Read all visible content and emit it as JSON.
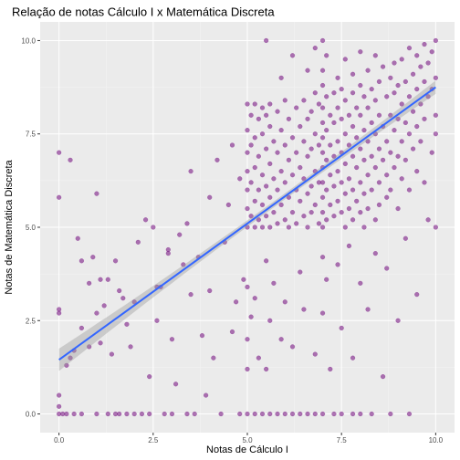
{
  "chart_data": {
    "type": "scatter",
    "title": "Relação de notas Cálculo I x Matemática Discreta",
    "xlabel": "Notas de Cálculo I",
    "ylabel": "Notas de Matemática Discreta",
    "xlim": [
      -0.5,
      10.5
    ],
    "ylim": [
      -0.5,
      10.5
    ],
    "x_ticks": [
      0.0,
      2.5,
      5.0,
      7.5,
      10.0
    ],
    "x_tick_labels": [
      "0.0",
      "2.5",
      "5.0",
      "7.5",
      "10.0"
    ],
    "y_ticks": [
      0.0,
      2.5,
      5.0,
      7.5,
      10.0
    ],
    "y_tick_labels": [
      "0.0",
      "2.5",
      "5.0",
      "7.5",
      "10.0"
    ],
    "grid": true,
    "point_color": "#7b1a86",
    "line_color": "#3366ff",
    "band_color": "#999999",
    "panel_color": "#ebebeb",
    "regression": {
      "intercept": 1.45,
      "slope": 0.73,
      "se_min": 0.08,
      "se_max": 0.3
    },
    "points": [
      [
        0.0,
        7.0
      ],
      [
        0.0,
        5.8
      ],
      [
        0.0,
        2.8
      ],
      [
        0.0,
        2.7
      ],
      [
        0.0,
        0.5
      ],
      [
        0.0,
        0.2
      ],
      [
        0.0,
        0.0
      ],
      [
        0.1,
        0.0
      ],
      [
        0.2,
        0.0
      ],
      [
        0.2,
        1.3
      ],
      [
        0.3,
        1.5
      ],
      [
        0.3,
        6.8
      ],
      [
        0.4,
        1.7
      ],
      [
        0.4,
        0.0
      ],
      [
        0.5,
        4.7
      ],
      [
        0.6,
        4.1
      ],
      [
        0.6,
        2.3
      ],
      [
        0.6,
        0.0
      ],
      [
        0.8,
        1.8
      ],
      [
        0.8,
        3.5
      ],
      [
        0.9,
        4.2
      ],
      [
        1.0,
        5.9
      ],
      [
        1.0,
        2.7
      ],
      [
        1.0,
        0.0
      ],
      [
        1.1,
        3.6
      ],
      [
        1.1,
        1.9
      ],
      [
        1.2,
        2.9
      ],
      [
        1.3,
        0.0
      ],
      [
        1.3,
        3.6
      ],
      [
        1.4,
        1.6
      ],
      [
        1.5,
        0.0
      ],
      [
        1.5,
        4.1
      ],
      [
        1.6,
        3.3
      ],
      [
        1.6,
        0.0
      ],
      [
        1.7,
        3.1
      ],
      [
        1.8,
        0.0
      ],
      [
        1.8,
        2.4
      ],
      [
        1.9,
        1.8
      ],
      [
        2.0,
        0.0
      ],
      [
        2.0,
        3.0
      ],
      [
        2.1,
        4.6
      ],
      [
        2.2,
        0.0
      ],
      [
        2.3,
        5.2
      ],
      [
        2.4,
        1.0
      ],
      [
        2.4,
        0.0
      ],
      [
        2.5,
        5.0
      ],
      [
        2.6,
        3.4
      ],
      [
        2.6,
        2.5
      ],
      [
        2.7,
        3.4
      ],
      [
        2.8,
        0.0
      ],
      [
        2.9,
        4.4
      ],
      [
        2.9,
        4.3
      ],
      [
        3.0,
        2.0
      ],
      [
        3.0,
        0.0
      ],
      [
        3.1,
        0.8
      ],
      [
        3.2,
        4.8
      ],
      [
        3.3,
        4.0
      ],
      [
        3.4,
        5.1
      ],
      [
        3.4,
        0.0
      ],
      [
        3.5,
        6.5
      ],
      [
        3.5,
        3.2
      ],
      [
        3.6,
        0.0
      ],
      [
        3.7,
        4.2
      ],
      [
        3.8,
        2.1
      ],
      [
        3.9,
        0.5
      ],
      [
        4.0,
        5.8
      ],
      [
        4.0,
        3.3
      ],
      [
        4.1,
        1.5
      ],
      [
        4.2,
        6.8
      ],
      [
        4.3,
        0.0
      ],
      [
        4.4,
        4.6
      ],
      [
        4.5,
        5.6
      ],
      [
        4.6,
        2.2
      ],
      [
        4.6,
        7.2
      ],
      [
        4.7,
        3.0
      ],
      [
        4.8,
        0.0
      ],
      [
        4.8,
        6.3
      ],
      [
        4.9,
        3.6
      ],
      [
        5.0,
        8.3
      ],
      [
        5.0,
        7.6
      ],
      [
        5.0,
        7.0
      ],
      [
        5.0,
        6.5
      ],
      [
        5.0,
        6.0
      ],
      [
        5.0,
        5.5
      ],
      [
        5.0,
        5.0
      ],
      [
        5.0,
        3.4
      ],
      [
        5.0,
        2.0
      ],
      [
        5.0,
        1.2
      ],
      [
        5.0,
        0.0
      ],
      [
        5.1,
        8.0
      ],
      [
        5.1,
        7.2
      ],
      [
        5.1,
        6.2
      ],
      [
        5.1,
        5.3
      ],
      [
        5.1,
        2.6
      ],
      [
        5.2,
        8.3
      ],
      [
        5.2,
        7.4
      ],
      [
        5.2,
        6.6
      ],
      [
        5.2,
        5.7
      ],
      [
        5.2,
        5.0
      ],
      [
        5.2,
        3.1
      ],
      [
        5.2,
        0.0
      ],
      [
        5.3,
        7.9
      ],
      [
        5.3,
        6.9
      ],
      [
        5.3,
        6.0
      ],
      [
        5.3,
        5.2
      ],
      [
        5.3,
        1.5
      ],
      [
        5.4,
        8.2
      ],
      [
        5.4,
        7.5
      ],
      [
        5.4,
        6.4
      ],
      [
        5.4,
        5.6
      ],
      [
        5.4,
        5.0
      ],
      [
        5.4,
        0.0
      ],
      [
        5.5,
        10.0
      ],
      [
        5.5,
        8.0
      ],
      [
        5.5,
        7.1
      ],
      [
        5.5,
        6.1
      ],
      [
        5.5,
        5.3
      ],
      [
        5.5,
        4.1
      ],
      [
        5.5,
        1.2
      ],
      [
        5.6,
        8.3
      ],
      [
        5.6,
        7.7
      ],
      [
        5.6,
        6.7
      ],
      [
        5.6,
        5.8
      ],
      [
        5.6,
        5.0
      ],
      [
        5.6,
        2.5
      ],
      [
        5.6,
        0.0
      ],
      [
        5.7,
        7.3
      ],
      [
        5.7,
        6.3
      ],
      [
        5.7,
        5.4
      ],
      [
        5.7,
        3.5
      ],
      [
        5.8,
        8.1
      ],
      [
        5.8,
        7.0
      ],
      [
        5.8,
        6.0
      ],
      [
        5.8,
        5.1
      ],
      [
        5.8,
        0.0
      ],
      [
        5.9,
        9.0
      ],
      [
        5.9,
        7.6
      ],
      [
        5.9,
        6.5
      ],
      [
        5.9,
        5.6
      ],
      [
        5.9,
        2.0
      ],
      [
        6.0,
        8.4
      ],
      [
        6.0,
        7.2
      ],
      [
        6.0,
        6.2
      ],
      [
        6.0,
        5.2
      ],
      [
        6.0,
        3.0
      ],
      [
        6.0,
        0.0
      ],
      [
        6.1,
        7.9
      ],
      [
        6.1,
        6.8
      ],
      [
        6.1,
        5.8
      ],
      [
        6.1,
        5.0
      ],
      [
        6.2,
        9.6
      ],
      [
        6.2,
        7.4
      ],
      [
        6.2,
        6.4
      ],
      [
        6.2,
        5.4
      ],
      [
        6.2,
        1.8
      ],
      [
        6.2,
        0.0
      ],
      [
        6.3,
        8.2
      ],
      [
        6.3,
        7.0
      ],
      [
        6.3,
        6.0
      ],
      [
        6.3,
        5.1
      ],
      [
        6.4,
        7.7
      ],
      [
        6.4,
        6.6
      ],
      [
        6.4,
        5.7
      ],
      [
        6.4,
        3.8
      ],
      [
        6.4,
        0.0
      ],
      [
        6.5,
        8.4
      ],
      [
        6.5,
        7.3
      ],
      [
        6.5,
        6.3
      ],
      [
        6.5,
        5.3
      ],
      [
        6.5,
        2.8
      ],
      [
        6.6,
        9.2
      ],
      [
        6.6,
        7.9
      ],
      [
        6.6,
        6.9
      ],
      [
        6.6,
        5.9
      ],
      [
        6.6,
        5.0
      ],
      [
        6.6,
        0.0
      ],
      [
        6.7,
        8.1
      ],
      [
        6.7,
        7.1
      ],
      [
        6.7,
        6.1
      ],
      [
        6.7,
        5.4
      ],
      [
        6.8,
        9.8
      ],
      [
        6.8,
        8.6
      ],
      [
        6.8,
        7.5
      ],
      [
        6.8,
        6.5
      ],
      [
        6.8,
        5.6
      ],
      [
        6.8,
        1.6
      ],
      [
        6.8,
        0.0
      ],
      [
        6.9,
        8.3
      ],
      [
        6.9,
        7.2
      ],
      [
        6.9,
        6.2
      ],
      [
        6.9,
        5.1
      ],
      [
        7.0,
        10.0
      ],
      [
        7.0,
        9.2
      ],
      [
        7.0,
        8.8
      ],
      [
        7.0,
        8.2
      ],
      [
        7.0,
        7.8
      ],
      [
        7.0,
        7.4
      ],
      [
        7.0,
        7.0
      ],
      [
        7.0,
        6.6
      ],
      [
        7.0,
        6.2
      ],
      [
        7.0,
        5.8
      ],
      [
        7.0,
        5.4
      ],
      [
        7.0,
        5.0
      ],
      [
        7.0,
        4.2
      ],
      [
        7.0,
        2.7
      ],
      [
        7.0,
        0.0
      ],
      [
        7.1,
        9.6
      ],
      [
        7.1,
        8.5
      ],
      [
        7.1,
        7.6
      ],
      [
        7.1,
        6.8
      ],
      [
        7.1,
        6.0
      ],
      [
        7.1,
        5.2
      ],
      [
        7.1,
        3.6
      ],
      [
        7.2,
        8.0
      ],
      [
        7.2,
        7.2
      ],
      [
        7.2,
        6.4
      ],
      [
        7.2,
        5.6
      ],
      [
        7.2,
        1.2
      ],
      [
        7.3,
        8.6
      ],
      [
        7.3,
        7.8
      ],
      [
        7.3,
        6.9
      ],
      [
        7.3,
        6.1
      ],
      [
        7.3,
        5.3
      ],
      [
        7.3,
        0.0
      ],
      [
        7.4,
        9.0
      ],
      [
        7.4,
        8.2
      ],
      [
        7.4,
        7.3
      ],
      [
        7.4,
        6.5
      ],
      [
        7.4,
        5.7
      ],
      [
        7.4,
        4.0
      ],
      [
        7.5,
        8.7
      ],
      [
        7.5,
        7.9
      ],
      [
        7.5,
        7.0
      ],
      [
        7.5,
        6.2
      ],
      [
        7.5,
        5.4
      ],
      [
        7.5,
        2.3
      ],
      [
        7.5,
        0.0
      ],
      [
        7.6,
        9.5
      ],
      [
        7.6,
        8.4
      ],
      [
        7.6,
        7.5
      ],
      [
        7.6,
        6.7
      ],
      [
        7.6,
        5.9
      ],
      [
        7.6,
        5.0
      ],
      [
        7.7,
        8.0
      ],
      [
        7.7,
        7.2
      ],
      [
        7.7,
        6.3
      ],
      [
        7.7,
        5.5
      ],
      [
        7.7,
        4.5
      ],
      [
        7.8,
        9.1
      ],
      [
        7.8,
        8.6
      ],
      [
        7.8,
        7.7
      ],
      [
        7.8,
        6.9
      ],
      [
        7.8,
        6.0
      ],
      [
        7.8,
        5.2
      ],
      [
        7.8,
        1.5
      ],
      [
        7.8,
        0.0
      ],
      [
        7.9,
        8.2
      ],
      [
        7.9,
        7.4
      ],
      [
        7.9,
        6.6
      ],
      [
        7.9,
        5.7
      ],
      [
        8.0,
        9.7
      ],
      [
        8.0,
        8.8
      ],
      [
        8.0,
        8.0
      ],
      [
        8.0,
        7.1
      ],
      [
        8.0,
        6.2
      ],
      [
        8.0,
        5.4
      ],
      [
        8.0,
        3.5
      ],
      [
        8.0,
        0.0
      ],
      [
        8.1,
        8.5
      ],
      [
        8.1,
        7.6
      ],
      [
        8.1,
        6.8
      ],
      [
        8.1,
        5.9
      ],
      [
        8.1,
        5.0
      ],
      [
        8.2,
        9.2
      ],
      [
        8.2,
        8.2
      ],
      [
        8.2,
        7.3
      ],
      [
        8.2,
        6.4
      ],
      [
        8.2,
        5.5
      ],
      [
        8.2,
        2.8
      ],
      [
        8.3,
        8.7
      ],
      [
        8.3,
        7.8
      ],
      [
        8.3,
        6.9
      ],
      [
        8.3,
        6.0
      ],
      [
        8.3,
        0.0
      ],
      [
        8.4,
        9.6
      ],
      [
        8.4,
        8.4
      ],
      [
        8.4,
        7.5
      ],
      [
        8.4,
        6.6
      ],
      [
        8.4,
        5.2
      ],
      [
        8.4,
        4.3
      ],
      [
        8.5,
        8.9
      ],
      [
        8.5,
        8.0
      ],
      [
        8.5,
        7.1
      ],
      [
        8.5,
        6.2
      ],
      [
        8.5,
        5.6
      ],
      [
        8.6,
        9.3
      ],
      [
        8.6,
        7.7
      ],
      [
        8.6,
        6.8
      ],
      [
        8.6,
        1.0
      ],
      [
        8.7,
        8.5
      ],
      [
        8.7,
        7.3
      ],
      [
        8.7,
        6.4
      ],
      [
        8.7,
        5.8
      ],
      [
        8.7,
        3.9
      ],
      [
        8.8,
        9.0
      ],
      [
        8.8,
        8.0
      ],
      [
        8.8,
        7.0
      ],
      [
        8.8,
        6.0
      ],
      [
        8.8,
        0.0
      ],
      [
        8.9,
        9.4
      ],
      [
        8.9,
        8.6
      ],
      [
        8.9,
        7.6
      ],
      [
        8.9,
        6.6
      ],
      [
        9.0,
        8.8
      ],
      [
        9.0,
        7.9
      ],
      [
        9.0,
        6.9
      ],
      [
        9.0,
        5.5
      ],
      [
        9.0,
        2.5
      ],
      [
        9.1,
        9.5
      ],
      [
        9.1,
        8.3
      ],
      [
        9.1,
        7.3
      ],
      [
        9.1,
        6.3
      ],
      [
        9.2,
        8.9
      ],
      [
        9.2,
        7.8
      ],
      [
        9.2,
        6.8
      ],
      [
        9.2,
        4.7
      ],
      [
        9.3,
        9.8
      ],
      [
        9.3,
        8.5
      ],
      [
        9.3,
        7.5
      ],
      [
        9.3,
        6.0
      ],
      [
        9.3,
        0.0
      ],
      [
        9.4,
        9.1
      ],
      [
        9.4,
        8.1
      ],
      [
        9.4,
        7.1
      ],
      [
        9.5,
        9.6
      ],
      [
        9.5,
        8.7
      ],
      [
        9.5,
        7.7
      ],
      [
        9.5,
        6.5
      ],
      [
        9.5,
        3.2
      ],
      [
        9.6,
        9.3
      ],
      [
        9.6,
        8.3
      ],
      [
        9.6,
        7.3
      ],
      [
        9.7,
        9.9
      ],
      [
        9.7,
        8.9
      ],
      [
        9.7,
        7.9
      ],
      [
        9.7,
        6.2
      ],
      [
        9.8,
        9.4
      ],
      [
        9.8,
        8.5
      ],
      [
        9.8,
        5.2
      ],
      [
        9.9,
        9.7
      ],
      [
        9.9,
        8.7
      ],
      [
        9.9,
        7.0
      ],
      [
        10.0,
        10.0
      ],
      [
        10.0,
        9.0
      ],
      [
        10.0,
        8.0
      ],
      [
        10.0,
        7.5
      ],
      [
        10.0,
        5.0
      ]
    ]
  }
}
